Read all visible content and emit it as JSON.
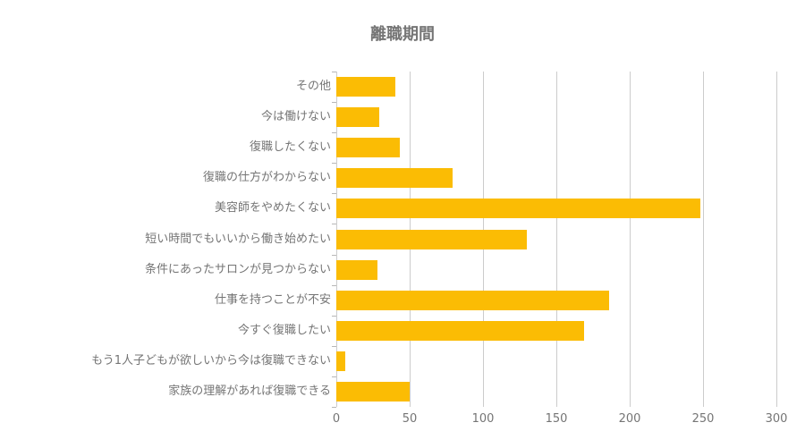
{
  "title": "離職期間",
  "colors": {
    "bar": "#FBBC04",
    "grid": "#CCCCCC",
    "axis": "#B7B7B7",
    "text": "#757575",
    "background": "#FFFFFF"
  },
  "chart_data": {
    "type": "bar",
    "orientation": "horizontal",
    "title": "離職期間",
    "categories": [
      "その他",
      "今は働けない",
      "復職したくない",
      "復職の仕方がわからない",
      "美容師をやめたくない",
      "短い時間でもいいから働き始めたい",
      "条件にあったサロンが見つからない",
      "仕事を持つことが不安",
      "今すぐ復職したい",
      "もう1人子どもが欲しいから今は復職できない",
      "家族の理解があれば復職できる"
    ],
    "values": [
      40,
      29,
      43,
      79,
      248,
      130,
      28,
      186,
      169,
      6,
      50
    ],
    "xlabel": "",
    "ylabel": "",
    "xlim": [
      0,
      300
    ],
    "xticks": [
      0,
      50,
      100,
      150,
      200,
      250,
      300
    ],
    "grid": true,
    "legend": "none"
  }
}
